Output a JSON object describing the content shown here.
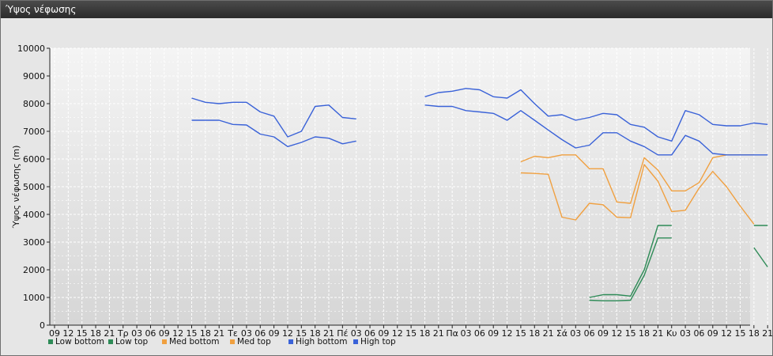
{
  "window": {
    "title": "Ύψος νέφωσης"
  },
  "chart_data": {
    "type": "line",
    "title": "",
    "ylabel": "Ύψος νέφωσης (m)",
    "ylim": [
      0,
      10000
    ],
    "yticks": [
      0,
      1000,
      2000,
      3000,
      4000,
      5000,
      6000,
      7000,
      8000,
      9000,
      10000
    ],
    "grid": true,
    "legend_position": "bottom-left",
    "x_tick_labels": [
      "09",
      "12",
      "15",
      "18",
      "21",
      "Τρ",
      "03",
      "06",
      "09",
      "12",
      "15",
      "18",
      "21",
      "Τε",
      "03",
      "06",
      "09",
      "12",
      "15",
      "18",
      "21",
      "Πέ",
      "03",
      "06",
      "09",
      "12",
      "15",
      "18",
      "21",
      "Πα",
      "03",
      "06",
      "09",
      "12",
      "15",
      "18",
      "21",
      "Σά",
      "03",
      "06",
      "09",
      "12",
      "15",
      "18",
      "21",
      "Κυ",
      "03",
      "06",
      "09",
      "12",
      "15",
      "18",
      "21"
    ],
    "series": [
      {
        "name": "Low bottom",
        "color": "#2e8b57",
        "points": [
          [
            39,
            1000
          ],
          [
            40,
            1100
          ],
          [
            41,
            1100
          ],
          [
            42,
            1050
          ],
          [
            43,
            2000
          ],
          [
            44,
            3600
          ],
          [
            45,
            3600
          ],
          [
            null,
            null
          ],
          [
            51,
            3600
          ],
          [
            52,
            3600
          ]
        ]
      },
      {
        "name": "Low top",
        "color": "#2e8b57",
        "points": [
          [
            39,
            900
          ],
          [
            40,
            880
          ],
          [
            41,
            880
          ],
          [
            42,
            900
          ],
          [
            43,
            1800
          ],
          [
            44,
            3150
          ],
          [
            45,
            3150
          ],
          [
            null,
            null
          ],
          [
            51,
            2800
          ],
          [
            52,
            2100
          ]
        ]
      },
      {
        "name": "Med bottom",
        "color": "#f0a040",
        "points": [
          [
            34,
            5500
          ],
          [
            35,
            5480
          ],
          [
            36,
            5450
          ],
          [
            37,
            3900
          ],
          [
            38,
            3800
          ],
          [
            39,
            4400
          ],
          [
            40,
            4350
          ],
          [
            41,
            3900
          ],
          [
            42,
            3880
          ],
          [
            43,
            5800
          ],
          [
            44,
            5200
          ],
          [
            45,
            4100
          ],
          [
            46,
            4150
          ],
          [
            47,
            4950
          ],
          [
            48,
            5550
          ],
          [
            49,
            5000
          ],
          [
            50,
            4300
          ],
          [
            51,
            3650
          ]
        ]
      },
      {
        "name": "Med top",
        "color": "#f0a040",
        "points": [
          [
            34,
            5900
          ],
          [
            35,
            6100
          ],
          [
            36,
            6050
          ],
          [
            37,
            6150
          ],
          [
            38,
            6150
          ],
          [
            39,
            5650
          ],
          [
            40,
            5650
          ],
          [
            41,
            4450
          ],
          [
            42,
            4400
          ],
          [
            43,
            6050
          ],
          [
            44,
            5600
          ],
          [
            45,
            4850
          ],
          [
            46,
            4850
          ],
          [
            47,
            5150
          ],
          [
            48,
            6050
          ],
          [
            49,
            6150
          ],
          [
            50,
            6150
          ],
          [
            51,
            6150
          ]
        ]
      },
      {
        "name": "High bottom",
        "color": "#3a62d8",
        "points": [
          [
            10,
            7400
          ],
          [
            11,
            7400
          ],
          [
            12,
            7400
          ],
          [
            13,
            7250
          ],
          [
            14,
            7230
          ],
          [
            15,
            6900
          ],
          [
            16,
            6800
          ],
          [
            17,
            6450
          ],
          [
            18,
            6600
          ],
          [
            19,
            6800
          ],
          [
            20,
            6750
          ],
          [
            21,
            6550
          ],
          [
            22,
            6650
          ],
          [
            null,
            null
          ],
          [
            27,
            7950
          ],
          [
            28,
            7900
          ],
          [
            29,
            7900
          ],
          [
            30,
            7750
          ],
          [
            31,
            7700
          ],
          [
            32,
            7650
          ],
          [
            33,
            7400
          ],
          [
            34,
            7750
          ],
          [
            35,
            7400
          ],
          [
            36,
            7050
          ],
          [
            37,
            6700
          ],
          [
            38,
            6400
          ],
          [
            39,
            6500
          ],
          [
            40,
            6950
          ],
          [
            41,
            6950
          ],
          [
            42,
            6650
          ],
          [
            43,
            6450
          ],
          [
            44,
            6150
          ],
          [
            45,
            6150
          ],
          [
            46,
            6850
          ],
          [
            47,
            6650
          ],
          [
            48,
            6200
          ],
          [
            49,
            6150
          ],
          [
            50,
            6150
          ],
          [
            51,
            6150
          ],
          [
            52,
            6150
          ]
        ]
      },
      {
        "name": "High top",
        "color": "#3a62d8",
        "points": [
          [
            10,
            8200
          ],
          [
            11,
            8050
          ],
          [
            12,
            8000
          ],
          [
            13,
            8050
          ],
          [
            14,
            8050
          ],
          [
            15,
            7700
          ],
          [
            16,
            7550
          ],
          [
            17,
            6800
          ],
          [
            18,
            7000
          ],
          [
            19,
            7900
          ],
          [
            20,
            7950
          ],
          [
            21,
            7500
          ],
          [
            22,
            7450
          ],
          [
            null,
            null
          ],
          [
            27,
            8250
          ],
          [
            28,
            8400
          ],
          [
            29,
            8450
          ],
          [
            30,
            8550
          ],
          [
            31,
            8500
          ],
          [
            32,
            8250
          ],
          [
            33,
            8200
          ],
          [
            34,
            8500
          ],
          [
            35,
            8000
          ],
          [
            36,
            7550
          ],
          [
            37,
            7600
          ],
          [
            38,
            7400
          ],
          [
            39,
            7500
          ],
          [
            40,
            7650
          ],
          [
            41,
            7600
          ],
          [
            42,
            7250
          ],
          [
            43,
            7150
          ],
          [
            44,
            6800
          ],
          [
            45,
            6650
          ],
          [
            46,
            7750
          ],
          [
            47,
            7600
          ],
          [
            48,
            7250
          ],
          [
            49,
            7200
          ],
          [
            50,
            7200
          ],
          [
            51,
            7300
          ],
          [
            52,
            7250
          ]
        ]
      }
    ]
  }
}
